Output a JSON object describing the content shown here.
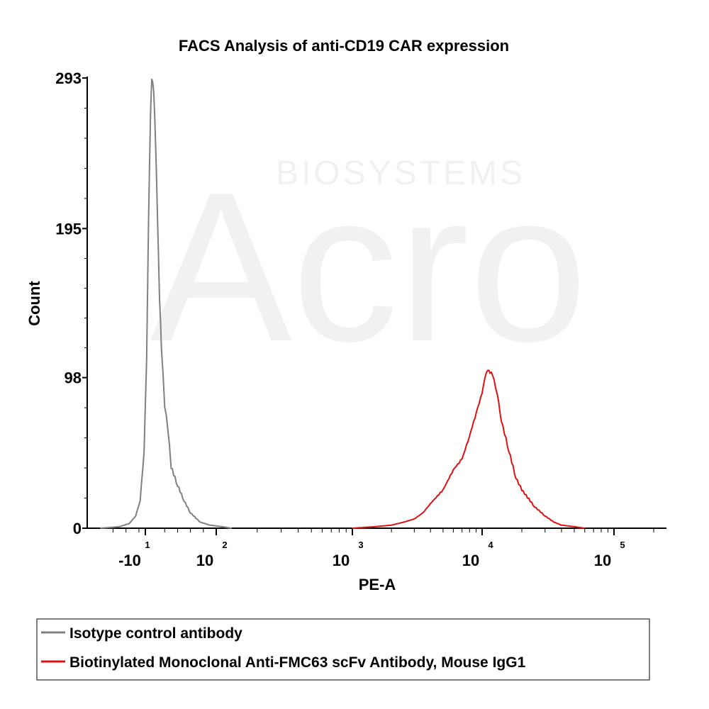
{
  "chart_data": {
    "type": "line",
    "title": "FACS Analysis of anti-CD19 CAR expression",
    "xlabel": "PE-A",
    "ylabel": "Count",
    "x_scale": "biexponential",
    "ylim": [
      0,
      293
    ],
    "y_ticks": [
      {
        "value": 0,
        "label": "0"
      },
      {
        "value": 98,
        "label": "98"
      },
      {
        "value": 195,
        "label": "195"
      },
      {
        "value": 293,
        "label": "293"
      }
    ],
    "x_ticks": [
      {
        "value": -10,
        "base": "-10",
        "exp": "1"
      },
      {
        "value": 100,
        "base": "10",
        "exp": "2"
      },
      {
        "value": 1000,
        "base": "10",
        "exp": "3"
      },
      {
        "value": 10000,
        "base": "10",
        "exp": "4"
      },
      {
        "value": 100000,
        "base": "10",
        "exp": "5"
      }
    ],
    "legend_position": "bottom",
    "series": [
      {
        "name": "Isotype control antibody",
        "color": "#808080",
        "x": [
          -80,
          -50,
          -35,
          -25,
          -18,
          -12,
          -8,
          -5,
          -2,
          0,
          3,
          6,
          9,
          12,
          15,
          20,
          25,
          30,
          40,
          50,
          60,
          75,
          90,
          110,
          130
        ],
        "y": [
          0,
          1,
          3,
          8,
          18,
          50,
          110,
          200,
          270,
          293,
          285,
          250,
          200,
          150,
          118,
          80,
          65,
          40,
          28,
          18,
          10,
          4,
          2,
          1,
          0
        ]
      },
      {
        "name": "Biotinylated Monoclonal Anti-FMC63 scFv Antibody, Mouse IgG1",
        "color": "#dd1111",
        "x": [
          1000,
          1500,
          2000,
          2500,
          3000,
          3500,
          4000,
          5000,
          6000,
          7000,
          8000,
          9000,
          10000,
          10500,
          11000,
          12000,
          13000,
          14000,
          16000,
          18000,
          20000,
          25000,
          30000,
          35000,
          40000,
          50000,
          60000
        ],
        "y": [
          0,
          1,
          2,
          4,
          6,
          10,
          16,
          25,
          38,
          45,
          60,
          75,
          88,
          98,
          103,
          100,
          88,
          70,
          50,
          33,
          25,
          14,
          8,
          4,
          2,
          1,
          0
        ]
      }
    ]
  }
}
